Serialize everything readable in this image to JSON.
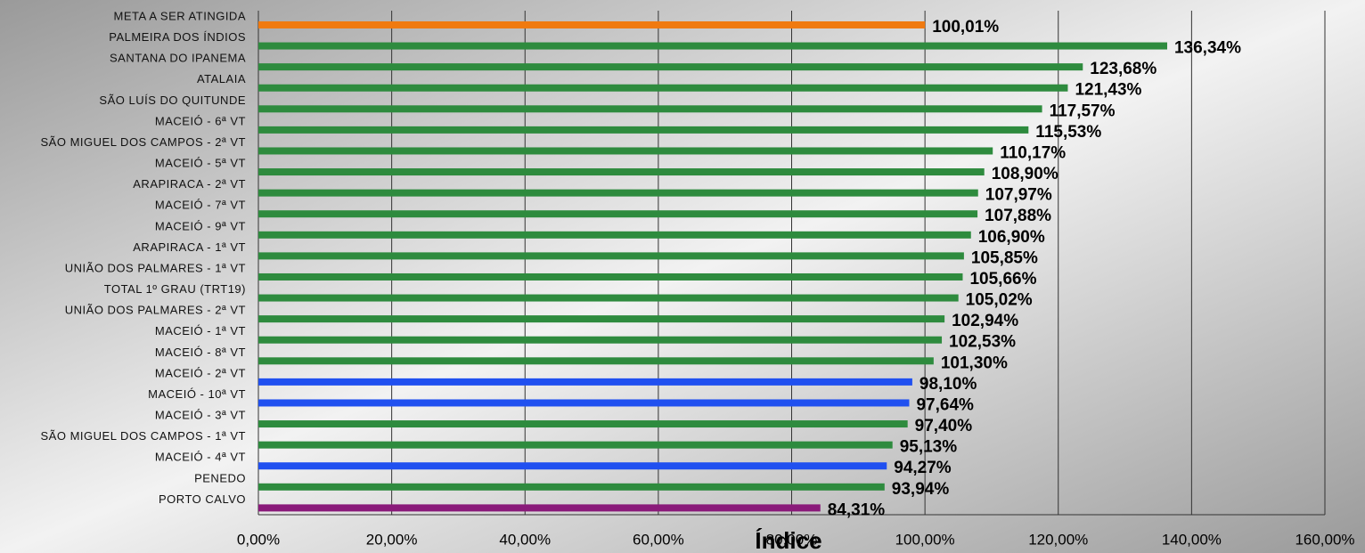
{
  "chart_data": {
    "type": "barh",
    "x_label": "Índice",
    "categories": [
      "META A SER ATINGIDA",
      "PALMEIRA DOS ÍNDIOS",
      "SANTANA DO IPANEMA",
      "ATALAIA",
      "SÃO LUÍS DO QUITUNDE",
      "MACEIÓ - 6ª VT",
      "SÃO MIGUEL DOS CAMPOS - 2ª VT",
      "MACEIÓ - 5ª VT",
      "ARAPIRACA - 2ª VT",
      "MACEIÓ - 7ª VT",
      "MACEIÓ - 9ª VT",
      "ARAPIRACA - 1ª VT",
      "UNIÃO DOS PALMARES - 1ª VT",
      "TOTAL 1º GRAU (TRT19)",
      "UNIÃO DOS PALMARES - 2ª VT",
      "MACEIÓ - 1ª VT",
      "MACEIÓ - 8ª VT",
      "MACEIÓ - 2ª VT",
      "MACEIÓ - 10ª VT",
      "MACEIÓ - 3ª VT",
      "SÃO MIGUEL DOS CAMPOS - 1ª VT",
      "MACEIÓ - 4ª VT",
      "PENEDO",
      "PORTO CALVO"
    ],
    "values": [
      100.01,
      136.34,
      123.68,
      121.43,
      117.57,
      115.53,
      110.17,
      108.9,
      107.97,
      107.88,
      106.9,
      105.85,
      105.66,
      105.02,
      102.94,
      102.53,
      101.3,
      98.1,
      97.64,
      97.4,
      95.13,
      94.27,
      93.94,
      84.31
    ],
    "value_labels": [
      "100,01%",
      "136,34%",
      "123,68%",
      "121,43%",
      "117,57%",
      "115,53%",
      "110,17%",
      "108,90%",
      "107,97%",
      "107,88%",
      "106,90%",
      "105,85%",
      "105,66%",
      "105,02%",
      "102,94%",
      "102,53%",
      "101,30%",
      "98,10%",
      "97,64%",
      "97,40%",
      "95,13%",
      "94,27%",
      "93,94%",
      "84,31%"
    ],
    "colors": [
      "#f07a10",
      "#2e8b3e",
      "#2e8b3e",
      "#2e8b3e",
      "#2e8b3e",
      "#2e8b3e",
      "#2e8b3e",
      "#2e8b3e",
      "#2e8b3e",
      "#2e8b3e",
      "#2e8b3e",
      "#2e8b3e",
      "#2e8b3e",
      "#2e8b3e",
      "#2e8b3e",
      "#2e8b3e",
      "#2e8b3e",
      "#2050f0",
      "#2050f0",
      "#2e8b3e",
      "#2e8b3e",
      "#2050f0",
      "#2e8b3e",
      "#8a1a7a"
    ],
    "xlim": [
      0,
      160
    ],
    "xticks": [
      {
        "value": 0,
        "label": "0,00%"
      },
      {
        "value": 20,
        "label": "20,00%"
      },
      {
        "value": 40,
        "label": "40,00%"
      },
      {
        "value": 60,
        "label": "60,00%"
      },
      {
        "value": 80,
        "label": "80,00%"
      },
      {
        "value": 100,
        "label": "100,00%"
      },
      {
        "value": 120,
        "label": "120,00%"
      },
      {
        "value": 140,
        "label": "140,00%"
      },
      {
        "value": 160,
        "label": "160,00%"
      }
    ],
    "grid": true
  }
}
